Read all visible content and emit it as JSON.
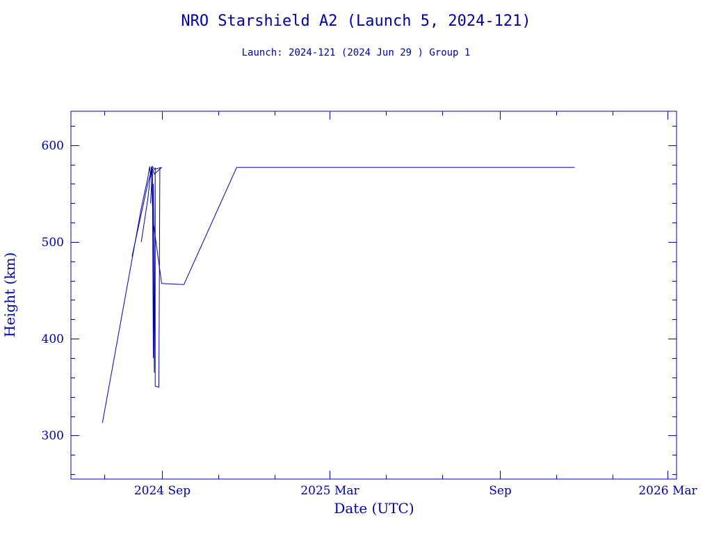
{
  "chart_data": {
    "type": "line",
    "title": "NRO Starshield A2 (Launch 5, 2024-121)",
    "subtitle": "Launch: 2024-121  (2024 Jun 29 )  Group 1",
    "xlabel": "Date (UTC)",
    "ylabel": "Height (km)",
    "x_type": "date",
    "xlim": [
      "2024-05-26",
      "2026-03-11"
    ],
    "ylim": [
      255,
      635
    ],
    "xticks": [
      {
        "date": "2024-09-01",
        "label": "2024 Sep"
      },
      {
        "date": "2025-03-01",
        "label": "2025 Mar"
      },
      {
        "date": "2025-09-01",
        "label": "Sep"
      },
      {
        "date": "2026-03-01",
        "label": "2026 Mar"
      }
    ],
    "xminor": [
      "2024-07-01",
      "2024-11-01",
      "2025-01-01",
      "2025-05-01",
      "2025-07-01",
      "2025-11-01",
      "2026-01-01"
    ],
    "yticks": [
      300,
      400,
      500,
      600
    ],
    "yminor_step": 20,
    "grid": false,
    "series": [
      {
        "color": "#0000a0",
        "points": [
          [
            "2024-06-29",
            313
          ],
          [
            "2024-07-31",
            482
          ],
          [
            "2024-08-10",
            535
          ],
          [
            "2024-08-17",
            566
          ],
          [
            "2024-08-19",
            578
          ],
          [
            "2024-08-20",
            567
          ],
          [
            "2024-08-21",
            576
          ],
          [
            "2024-08-22",
            537
          ],
          [
            "2024-08-22",
            575
          ],
          [
            "2024-08-23",
            380
          ],
          [
            "2024-08-23",
            560
          ],
          [
            "2024-08-24",
            365
          ],
          [
            "2024-08-25",
            577
          ],
          [
            "2024-08-25",
            351
          ],
          [
            "2024-08-29",
            350
          ],
          [
            "2024-08-30",
            576
          ],
          [
            "2024-09-01",
            577
          ]
        ]
      },
      {
        "color": "#0000a0",
        "points": [
          [
            "2024-07-31",
            485
          ],
          [
            "2024-08-17",
            560
          ],
          [
            "2024-08-22",
            578
          ],
          [
            "2024-08-24",
            575
          ],
          [
            "2024-09-01",
            577
          ]
        ]
      },
      {
        "color": "#0000a0",
        "points": [
          [
            "2024-08-10",
            500
          ],
          [
            "2024-08-17",
            544
          ],
          [
            "2024-08-21",
            578
          ],
          [
            "2024-08-23",
            520
          ],
          [
            "2024-09-01",
            457
          ],
          [
            "2024-09-25",
            456
          ],
          [
            "2024-11-21",
            577
          ],
          [
            "2025-11-21",
            577
          ]
        ]
      },
      {
        "color": "#0000a0",
        "points": [
          [
            "2024-08-20",
            540
          ],
          [
            "2024-08-22",
            576
          ],
          [
            "2024-08-24",
            570
          ],
          [
            "2024-09-01",
            577
          ]
        ]
      }
    ]
  }
}
